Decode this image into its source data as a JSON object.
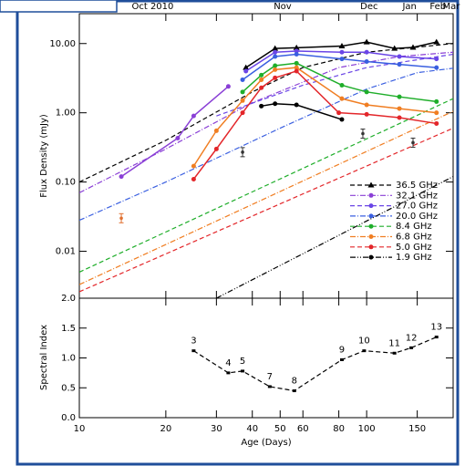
{
  "chart_data": [
    {
      "type": "line",
      "xlog": true,
      "ylog": true,
      "ylabel": "Flux Density (mJy)",
      "xlim": [
        10,
        200
      ],
      "ylim": [
        0.0021,
        27
      ],
      "yticks": [
        {
          "value": 10,
          "label": "10.00"
        },
        {
          "value": 1,
          "label": "1.00"
        },
        {
          "value": 0.1,
          "label": "0.10"
        },
        {
          "value": 0.01,
          "label": "0.01"
        }
      ],
      "top_ticks": [
        {
          "value": 18,
          "label": "Oct 2010"
        },
        {
          "value": 51,
          "label": "Nov"
        },
        {
          "value": 102,
          "label": "Dec"
        },
        {
          "value": 141,
          "label": "Jan"
        },
        {
          "value": 177,
          "label": "Feb"
        },
        {
          "value": 197,
          "label": "Mar"
        }
      ],
      "series": [
        {
          "name": "36.5 GHz",
          "color": "#000000",
          "marker": "triangle",
          "fit_dash": "5,3",
          "x": [
            38,
            48,
            57,
            82,
            100,
            125,
            145,
            175
          ],
          "values": [
            4.5,
            8.5,
            8.7,
            9.2,
            10.5,
            8.5,
            8.8,
            10.5
          ],
          "fit_x": [
            10,
            20,
            40,
            60,
            100,
            200
          ],
          "fit_values": [
            0.1,
            0.4,
            2.0,
            4.5,
            7.5,
            10
          ]
        },
        {
          "name": "32.1 GHz",
          "color": "#8a3fd6",
          "marker": "circle",
          "fit_dash": "6,2,1,2",
          "x": [
            14,
            22,
            25,
            33
          ],
          "values": [
            0.12,
            0.43,
            0.9,
            2.4
          ],
          "fit_x": [
            10,
            20,
            40,
            80,
            130,
            200
          ],
          "fit_values": [
            0.07,
            0.3,
            1.4,
            4.5,
            6.5,
            7.5
          ]
        },
        {
          "name": "27.0 GHz",
          "color": "#6a45e6",
          "marker": "circle",
          "fit_dash": "5,3",
          "x": [
            38,
            48,
            57,
            82,
            100,
            130,
            175
          ],
          "values": [
            4.0,
            7.5,
            7.8,
            7.5,
            7.5,
            6.5,
            6.0
          ],
          "fit_x": [
            30,
            60,
            100,
            200
          ],
          "fit_values": [
            0.9,
            2.5,
            4.5,
            7
          ]
        },
        {
          "name": "20.0 GHz",
          "color": "#3a5fe0",
          "marker": "circle",
          "fit_dash": "6,2,1,2",
          "x": [
            37,
            48,
            57,
            82,
            100,
            130,
            175
          ],
          "values": [
            3.0,
            6.5,
            7.0,
            6.0,
            5.5,
            5.0,
            4.5
          ],
          "fit_x": [
            10,
            20,
            50,
            100,
            150,
            200
          ],
          "fit_values": [
            0.028,
            0.1,
            0.6,
            2.2,
            3.8,
            4.4
          ]
        },
        {
          "name": "8.4 GHz",
          "color": "#1fae2a",
          "marker": "circle",
          "fit_dash": "5,3",
          "x": [
            37,
            43,
            48,
            57,
            82,
            100,
            130,
            175
          ],
          "values": [
            2.0,
            3.5,
            4.8,
            5.2,
            2.5,
            2.0,
            1.7,
            1.45
          ],
          "fit_x": [
            10,
            200
          ],
          "fit_values": [
            0.005,
            1.6
          ]
        },
        {
          "name": "6.8 GHz",
          "color": "#f07e22",
          "marker": "circle",
          "fit_dash": "6,2,1,2",
          "x": [
            25,
            30,
            37,
            43,
            48,
            57,
            82,
            100,
            130,
            175
          ],
          "values": [
            0.17,
            0.55,
            1.5,
            3.0,
            4.2,
            4.5,
            1.6,
            1.3,
            1.15,
            1.0
          ],
          "fit_x": [
            10,
            200
          ],
          "fit_values": [
            0.0033,
            1.05
          ]
        },
        {
          "name": "5.0 GHz",
          "color": "#e3262a",
          "marker": "circle",
          "fit_dash": "5,3",
          "x": [
            25,
            30,
            37,
            43,
            48,
            57,
            80,
            100,
            130,
            175
          ],
          "values": [
            0.11,
            0.3,
            1.0,
            2.3,
            3.2,
            4.0,
            1.0,
            0.95,
            0.85,
            0.7
          ],
          "fit_x": [
            10,
            200
          ],
          "fit_values": [
            0.0026,
            0.6
          ]
        },
        {
          "name": "1.9 GHz",
          "color": "#000000",
          "marker": "circle",
          "fit_dash": "6,2,1,2,1,2",
          "x": [
            43,
            48,
            57,
            82
          ],
          "values": [
            1.25,
            1.35,
            1.3,
            0.8
          ],
          "fit_x": [
            30,
            200
          ],
          "fit_values": [
            0.0021,
            0.12
          ]
        }
      ],
      "extra_points": [
        {
          "x": 14,
          "value": 0.03,
          "color": "#e07030"
        },
        {
          "x": 37,
          "value": 0.27,
          "color": "#333333"
        },
        {
          "x": 97,
          "value": 0.5,
          "color": "#333333"
        },
        {
          "x": 145,
          "value": 0.37,
          "color": "#333333"
        }
      ]
    },
    {
      "type": "line",
      "xlog": true,
      "ylabel": "Spectral Index",
      "xlabel": "Age (Days)",
      "xlim": [
        10,
        200
      ],
      "ylim": [
        0,
        2.0
      ],
      "xticks": [
        10,
        20,
        30,
        40,
        50,
        60,
        80,
        100,
        150
      ],
      "yticks": [
        {
          "value": 0,
          "label": "0.0"
        },
        0.5,
        {
          "value": 1,
          "label": "1.0"
        },
        1.5,
        {
          "value": 2,
          "label": "2.0"
        }
      ],
      "color": "#000000",
      "x": [
        25,
        33,
        37,
        46,
        56,
        82,
        98,
        125,
        143,
        175
      ],
      "values": [
        1.12,
        0.75,
        0.78,
        0.52,
        0.45,
        0.97,
        1.12,
        1.08,
        1.17,
        1.35
      ],
      "labels": [
        3,
        4,
        5,
        7,
        8,
        9,
        10,
        11,
        12,
        13
      ]
    }
  ]
}
